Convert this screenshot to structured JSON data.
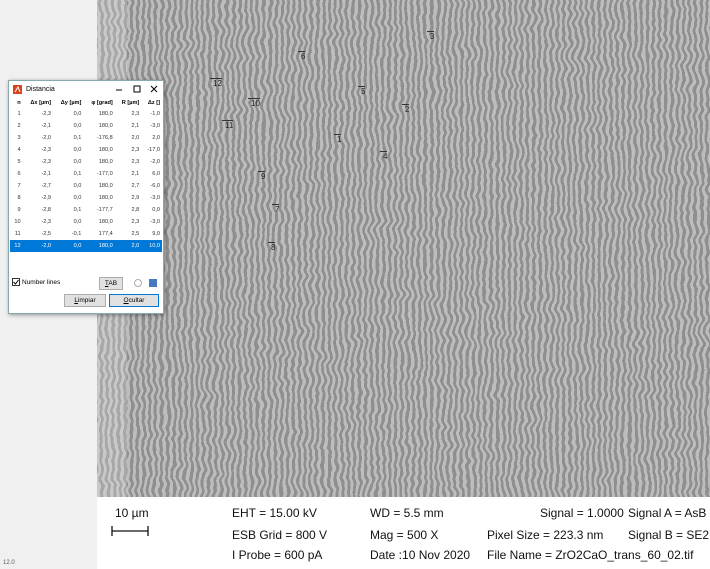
{
  "side_panel": {
    "footer": "12.0"
  },
  "markers": [
    "3",
    "6",
    "12",
    "5",
    "10",
    "2",
    "11",
    "1",
    "4",
    "9",
    "7",
    "8"
  ],
  "dialog": {
    "title": "Distancia",
    "columns": [
      "n",
      "Δx [µm]",
      "Δy [µm]",
      "φ [grad]",
      "R [µm]",
      "Δz []"
    ],
    "rows": [
      [
        "1",
        "-2,3",
        "0,0",
        "180,0",
        "2,3",
        "-1,0"
      ],
      [
        "2",
        "-2,1",
        "0,0",
        "180,0",
        "2,1",
        "-3,0"
      ],
      [
        "3",
        "-2,0",
        "0,1",
        "-176,8",
        "2,0",
        "2,0"
      ],
      [
        "4",
        "-2,3",
        "0,0",
        "180,0",
        "2,3",
        "-17,0"
      ],
      [
        "5",
        "-2,3",
        "0,0",
        "180,0",
        "2,3",
        "-2,0"
      ],
      [
        "6",
        "-2,1",
        "0,1",
        "-177,0",
        "2,1",
        "6,0"
      ],
      [
        "7",
        "-2,7",
        "0,0",
        "180,0",
        "2,7",
        "-6,0"
      ],
      [
        "8",
        "-2,9",
        "0,0",
        "180,0",
        "2,9",
        "-3,0"
      ],
      [
        "9",
        "-2,8",
        "0,1",
        "-177,7",
        "2,8",
        "0,0"
      ],
      [
        "10",
        "-2,3",
        "0,0",
        "180,0",
        "2,3",
        "-3,0"
      ],
      [
        "11",
        "-2,5",
        "-0,1",
        "177,4",
        "2,5",
        "9,0"
      ],
      [
        "12",
        "-2,0",
        "0,0",
        "180,0",
        "2,0",
        "10,0"
      ]
    ],
    "checkbox_label": "Number lines",
    "tab_button": "TAB",
    "buttons": [
      "Limpiar",
      "Ocultar"
    ]
  },
  "info_bar": {
    "scale": "10 µm",
    "col1": [
      "EHT = 15.00 kV",
      "ESB Grid =  800 V",
      "I Probe =  600 pA"
    ],
    "col2": [
      "WD =  5.5 mm",
      "Mag =  500 X",
      "Date :10 Nov 2020"
    ],
    "signal": "Signal = 1.0000",
    "pixel_size": "Pixel Size = 223.3 nm",
    "file_name": "File Name = ZrO2CaO_trans_60_02.tif",
    "col4": [
      "Signal A = AsB",
      "Signal B = SE2"
    ]
  }
}
